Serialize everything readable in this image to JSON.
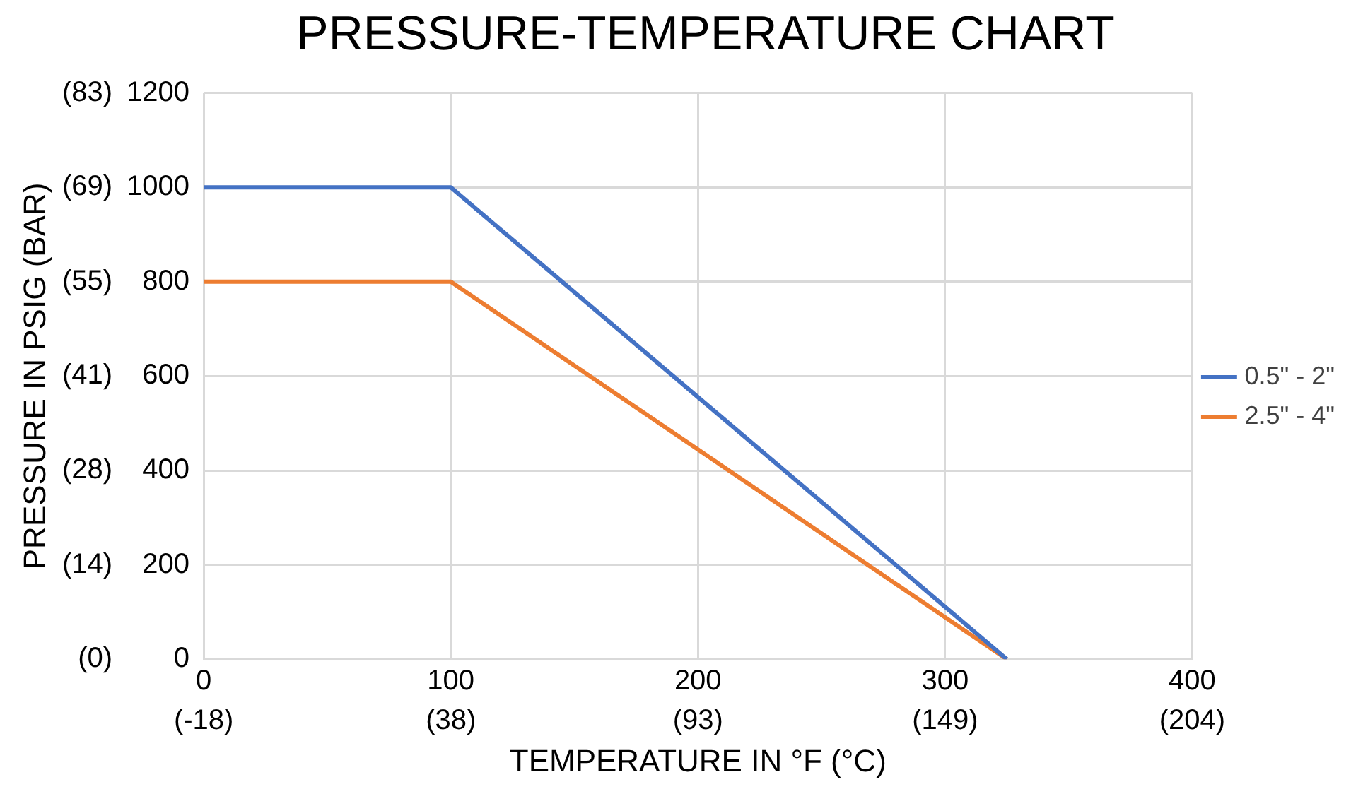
{
  "chart_data": {
    "type": "line",
    "title": "PRESSURE-TEMPERATURE CHART",
    "xlabel": "TEMPERATURE IN °F (°C)",
    "y2label": "PRESSURE IN PSIG (BAR)",
    "x": [
      0,
      100,
      325
    ],
    "series": [
      {
        "name": "0.5\" - 2\"",
        "color": "#4472c4",
        "values": [
          1000,
          1000,
          0
        ]
      },
      {
        "name": "2.5\" - 4\"",
        "color": "#ed7d31",
        "values": [
          800,
          800,
          0
        ]
      }
    ],
    "xlim": [
      0,
      400
    ],
    "xticks": [
      0,
      100,
      200,
      300,
      400
    ],
    "x2lim": [
      -17.78,
      204.44
    ],
    "x2ticks": [
      {
        "value": -17.78,
        "label": "(-18)"
      },
      {
        "value": 37.78,
        "label": "(38)"
      },
      {
        "value": 93.33,
        "label": "(93)"
      },
      {
        "value": 148.89,
        "label": "(149)"
      },
      {
        "value": 204.44,
        "label": "(204)"
      }
    ],
    "ylim": [
      0,
      1200
    ],
    "yticks": [
      0,
      200,
      400,
      600,
      800,
      1000,
      1200
    ],
    "y2lim": [
      0,
      82.74
    ],
    "y2ticks": [
      {
        "value": 0,
        "label": "(0)"
      },
      {
        "value": 13.79,
        "label": "(14)"
      },
      {
        "value": 27.58,
        "label": "(28)"
      },
      {
        "value": 41.37,
        "label": "(41)"
      },
      {
        "value": 55.16,
        "label": "(55)"
      },
      {
        "value": 68.95,
        "label": "(69)"
      },
      {
        "value": 82.74,
        "label": "(83)"
      }
    ],
    "grid": true,
    "legend": "right",
    "marker": "none",
    "line_style": "solid"
  }
}
